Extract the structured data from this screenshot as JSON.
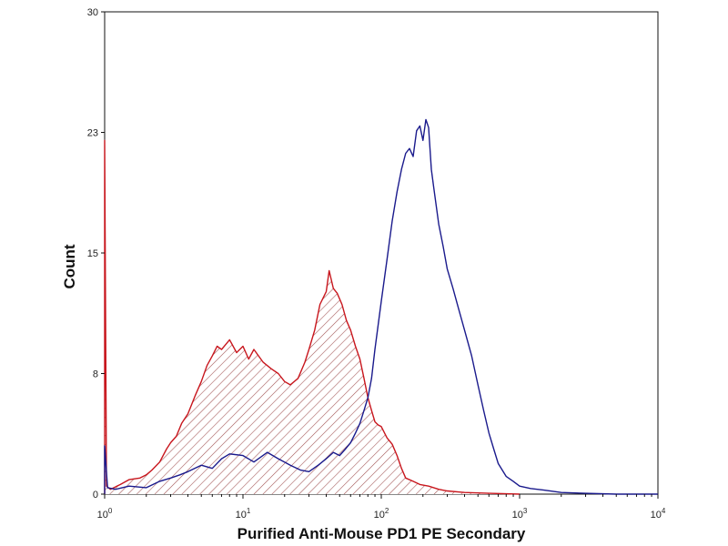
{
  "chart_data": {
    "type": "line",
    "title": "",
    "xlabel": "Purified Anti-Mouse PD1 PE Secondary",
    "ylabel": "Count",
    "x_scale": "log",
    "xlim": [
      1,
      10000
    ],
    "ylim": [
      0,
      30
    ],
    "x_ticks": [
      {
        "value": 1,
        "base": "10",
        "exp": "0"
      },
      {
        "value": 10,
        "base": "10",
        "exp": "1"
      },
      {
        "value": 100,
        "base": "10",
        "exp": "2"
      },
      {
        "value": 1000,
        "base": "10",
        "exp": "3"
      },
      {
        "value": 10000,
        "base": "10",
        "exp": "4"
      }
    ],
    "y_ticks": [
      {
        "value": 0,
        "label": "0"
      },
      {
        "value": 7.5,
        "label": "8"
      },
      {
        "value": 15,
        "label": "15"
      },
      {
        "value": 22.5,
        "label": "23"
      },
      {
        "value": 30,
        "label": "30"
      }
    ],
    "grid": false,
    "series": [
      {
        "color": "#c8161d",
        "fill": "hatched",
        "points": [
          [
            1.0,
            0
          ],
          [
            1.0,
            22
          ],
          [
            1.03,
            0.5
          ],
          [
            1.1,
            0.3
          ],
          [
            1.3,
            0.6
          ],
          [
            1.5,
            0.9
          ],
          [
            1.8,
            1.0
          ],
          [
            2.0,
            1.2
          ],
          [
            2.2,
            1.5
          ],
          [
            2.5,
            2.0
          ],
          [
            2.8,
            2.8
          ],
          [
            3.0,
            3.2
          ],
          [
            3.3,
            3.6
          ],
          [
            3.6,
            4.4
          ],
          [
            4.0,
            5.0
          ],
          [
            4.5,
            6.1
          ],
          [
            5.0,
            7.0
          ],
          [
            5.5,
            8.0
          ],
          [
            6.0,
            8.6
          ],
          [
            6.5,
            9.2
          ],
          [
            7.0,
            9.0
          ],
          [
            8.0,
            9.6
          ],
          [
            9.0,
            8.8
          ],
          [
            10.0,
            9.2
          ],
          [
            11.0,
            8.4
          ],
          [
            12.0,
            9.0
          ],
          [
            14.0,
            8.2
          ],
          [
            16.0,
            7.8
          ],
          [
            18.0,
            7.5
          ],
          [
            20.0,
            7.0
          ],
          [
            22.0,
            6.8
          ],
          [
            25.0,
            7.2
          ],
          [
            28.0,
            8.2
          ],
          [
            30.0,
            9.0
          ],
          [
            33.0,
            10.2
          ],
          [
            36.0,
            11.8
          ],
          [
            40.0,
            12.6
          ],
          [
            42.0,
            13.9
          ],
          [
            45.0,
            12.8
          ],
          [
            48.0,
            12.5
          ],
          [
            52.0,
            11.8
          ],
          [
            56.0,
            10.8
          ],
          [
            60.0,
            10.2
          ],
          [
            65.0,
            9.2
          ],
          [
            70.0,
            8.4
          ],
          [
            75.0,
            7.2
          ],
          [
            80.0,
            6.0
          ],
          [
            85.0,
            5.2
          ],
          [
            90.0,
            4.5
          ],
          [
            95.0,
            4.3
          ],
          [
            100.0,
            4.2
          ],
          [
            110.0,
            3.5
          ],
          [
            120.0,
            3.1
          ],
          [
            130.0,
            2.4
          ],
          [
            140.0,
            1.6
          ],
          [
            150.0,
            1.0
          ],
          [
            170.0,
            0.8
          ],
          [
            190.0,
            0.6
          ],
          [
            220.0,
            0.5
          ],
          [
            260.0,
            0.3
          ],
          [
            300.0,
            0.2
          ],
          [
            400.0,
            0.1
          ],
          [
            600.0,
            0.05
          ],
          [
            1000.0,
            0.0
          ]
        ]
      },
      {
        "color": "#1a1a8c",
        "fill": "none",
        "points": [
          [
            1.0,
            0
          ],
          [
            1.0,
            3.0
          ],
          [
            1.05,
            0.4
          ],
          [
            1.2,
            0.3
          ],
          [
            1.5,
            0.5
          ],
          [
            2.0,
            0.4
          ],
          [
            2.5,
            0.8
          ],
          [
            3.0,
            1.0
          ],
          [
            3.5,
            1.2
          ],
          [
            4.0,
            1.4
          ],
          [
            5.0,
            1.8
          ],
          [
            6.0,
            1.6
          ],
          [
            7.0,
            2.2
          ],
          [
            8.0,
            2.5
          ],
          [
            10.0,
            2.4
          ],
          [
            12.0,
            2.0
          ],
          [
            15.0,
            2.6
          ],
          [
            18.0,
            2.2
          ],
          [
            22.0,
            1.8
          ],
          [
            26.0,
            1.5
          ],
          [
            30.0,
            1.4
          ],
          [
            35.0,
            1.8
          ],
          [
            40.0,
            2.2
          ],
          [
            45.0,
            2.6
          ],
          [
            50.0,
            2.4
          ],
          [
            55.0,
            2.8
          ],
          [
            60.0,
            3.2
          ],
          [
            65.0,
            3.8
          ],
          [
            70.0,
            4.4
          ],
          [
            75.0,
            5.2
          ],
          [
            80.0,
            6.0
          ],
          [
            85.0,
            7.2
          ],
          [
            90.0,
            9.0
          ],
          [
            100.0,
            12.0
          ],
          [
            110.0,
            14.6
          ],
          [
            120.0,
            17.0
          ],
          [
            130.0,
            18.8
          ],
          [
            140.0,
            20.2
          ],
          [
            150.0,
            21.2
          ],
          [
            160.0,
            21.5
          ],
          [
            170.0,
            21.0
          ],
          [
            180.0,
            22.6
          ],
          [
            190.0,
            22.9
          ],
          [
            200.0,
            22.0
          ],
          [
            210.0,
            23.3
          ],
          [
            220.0,
            22.8
          ],
          [
            230.0,
            20.2
          ],
          [
            240.0,
            19.0
          ],
          [
            260.0,
            16.8
          ],
          [
            280.0,
            15.4
          ],
          [
            300.0,
            14.0
          ],
          [
            330.0,
            12.8
          ],
          [
            360.0,
            11.6
          ],
          [
            400.0,
            10.2
          ],
          [
            450.0,
            8.6
          ],
          [
            500.0,
            6.8
          ],
          [
            550.0,
            5.2
          ],
          [
            600.0,
            3.8
          ],
          [
            650.0,
            2.8
          ],
          [
            700.0,
            1.9
          ],
          [
            800.0,
            1.1
          ],
          [
            900.0,
            0.8
          ],
          [
            1000.0,
            0.5
          ],
          [
            1200.0,
            0.35
          ],
          [
            1500.0,
            0.25
          ],
          [
            2000.0,
            0.1
          ],
          [
            3000.0,
            0.05
          ],
          [
            5000.0,
            0.0
          ],
          [
            10000.0,
            0.0
          ]
        ]
      }
    ]
  }
}
